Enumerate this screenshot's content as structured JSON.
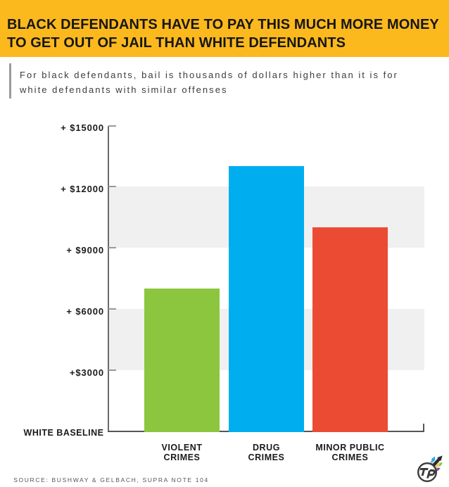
{
  "header": {
    "title_line1": "BLACK DEFENDANTS HAVE TO PAY THIS MUCH MORE MONEY",
    "title_line2": "TO GET OUT OF JAIL THAN WHITE DEFENDANTS",
    "background_color": "#FBB91E"
  },
  "subtitle": {
    "line1": "For black defendants, bail is thousands of dollars higher than it is for",
    "line2": "white defendants with similar offenses"
  },
  "chart_data": {
    "type": "bar",
    "title": "Black defendants have to pay this much more money to get out of jail than white defendants",
    "categories": [
      "VIOLENT CRIMES",
      "DRUG CRIMES",
      "MINOR PUBLIC CRIMES"
    ],
    "category_label_lines": [
      [
        "VIOLENT",
        "CRIMES"
      ],
      [
        "DRUG",
        "CRIMES"
      ],
      [
        "MINOR PUBLIC",
        "CRIMES"
      ]
    ],
    "values": [
      7000,
      13000,
      10000
    ],
    "bar_colors": [
      "#8CC63F",
      "#00AEEF",
      "#EC4B33"
    ],
    "xlabel": "",
    "ylabel": "",
    "ylim": [
      0,
      15000
    ],
    "y_ticks": [
      {
        "value": 15000,
        "label": "+ $15000"
      },
      {
        "value": 12000,
        "label": "+ $12000"
      },
      {
        "value": 9000,
        "label": "+ $9000"
      },
      {
        "value": 6000,
        "label": "+ $6000"
      },
      {
        "value": 3000,
        "label": "+$3000"
      }
    ],
    "baseline_label": "WHITE BASELINE",
    "grid_bands": [
      [
        9000,
        12000
      ],
      [
        3000,
        6000
      ]
    ],
    "grid_band_color": "#F0F0F0",
    "legend": "none"
  },
  "footer": {
    "source": "SOURCE: BUSHWAY & GELBACH, SUPRA NOTE 104"
  },
  "logo": {
    "monogram": "TP",
    "ring_color": "#3B3B3C",
    "arrow_colors": {
      "blue": "#29ABE2",
      "red": "#E03A3E",
      "black": "#2B2B2B",
      "yellow": "#F9A51A",
      "green": "#8CC63F",
      "purple": "#8A3F98"
    }
  }
}
